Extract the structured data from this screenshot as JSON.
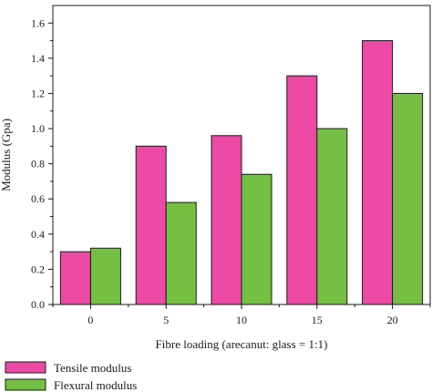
{
  "chart_data": {
    "type": "bar",
    "title": "",
    "xlabel": "Fibre loading (arecanut: glass = 1:1)",
    "ylabel": "Modulus (Gpa)",
    "categories": [
      "0",
      "5",
      "10",
      "15",
      "20"
    ],
    "series": [
      {
        "name": "Tensile modulus",
        "color": "#ec4aa5",
        "values": [
          0.3,
          0.9,
          0.96,
          1.3,
          1.5
        ]
      },
      {
        "name": "Flexural modulus",
        "color": "#74c043",
        "values": [
          0.32,
          0.58,
          0.74,
          1.0,
          1.2
        ]
      }
    ],
    "ylim": [
      0,
      1.7
    ],
    "yticks": [
      "0.0",
      "0.2",
      "0.4",
      "0.6",
      "0.8",
      "1.0",
      "1.2",
      "1.4",
      "1.6"
    ],
    "legend_position": "bottom-left",
    "grid": false
  }
}
